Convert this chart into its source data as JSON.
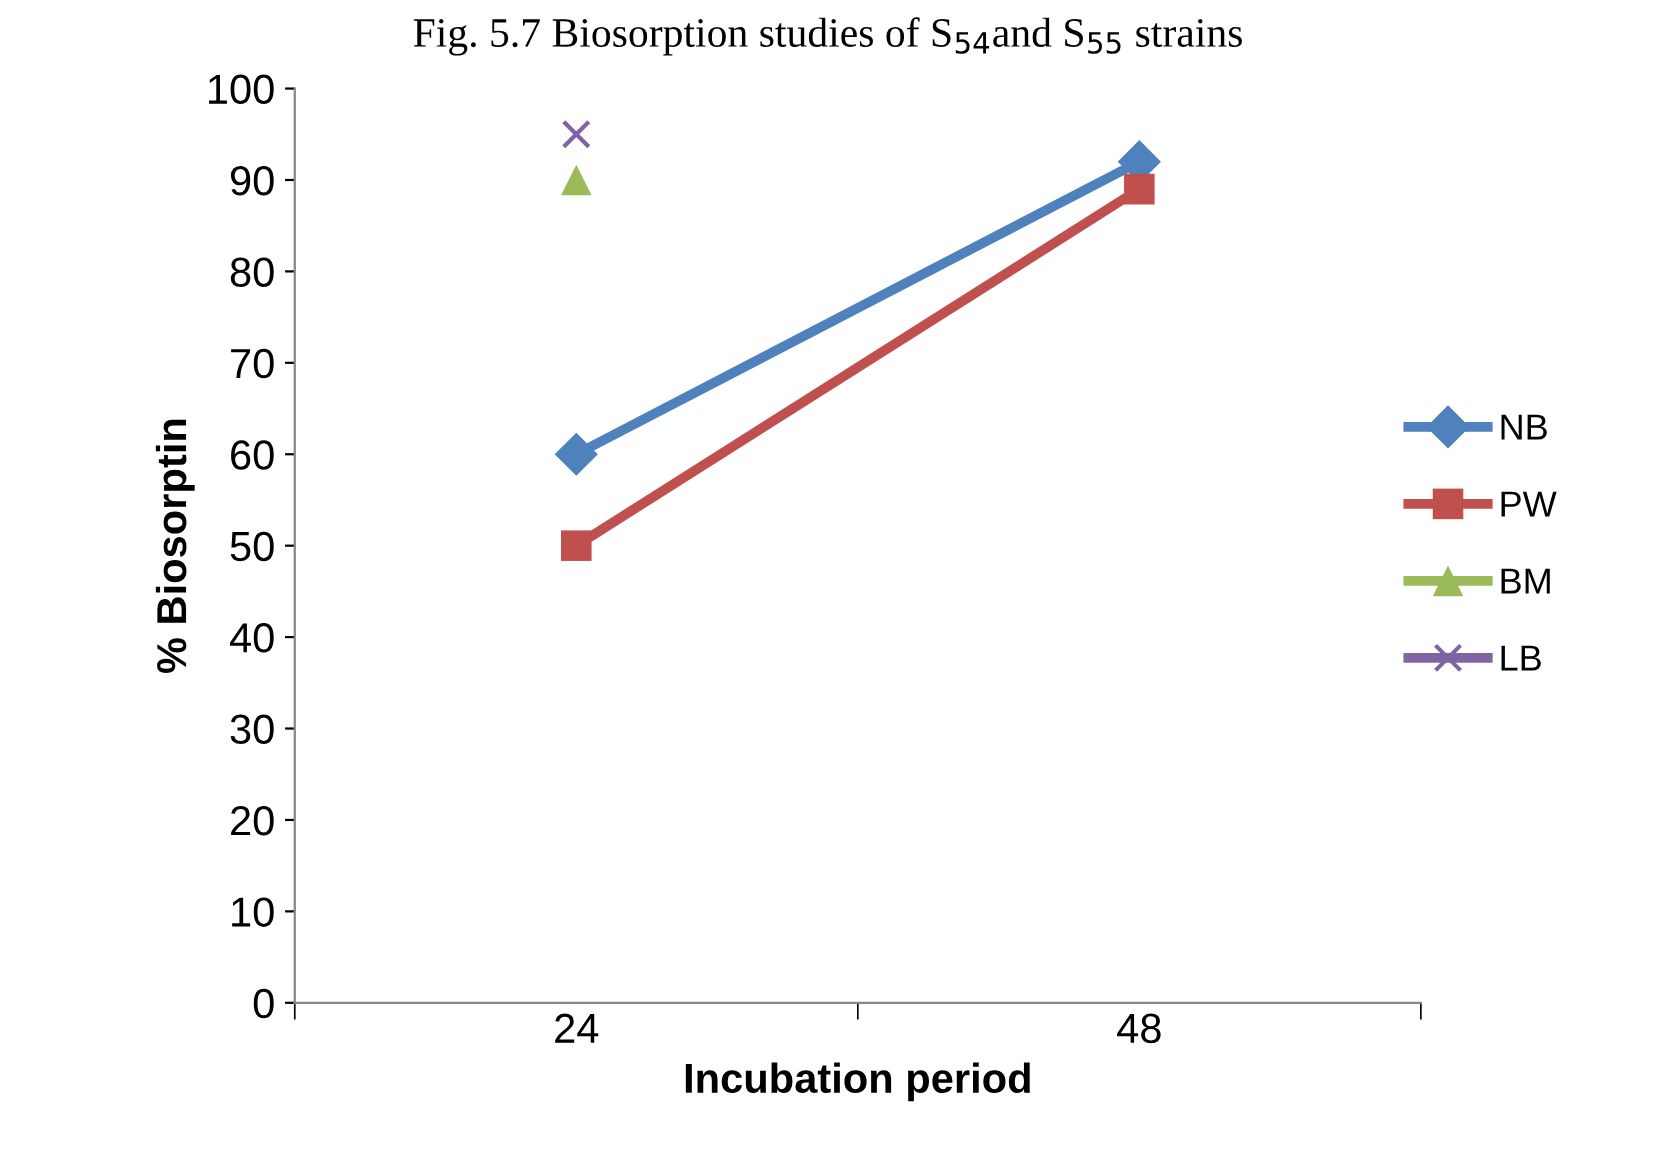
{
  "chart_data": {
    "type": "line",
    "title": "Fig. 5.7 Biosorption studies of S$_{54}$and S$_{55}$ strains",
    "xlabel": "Incubation period",
    "ylabel": "% Biosorptin",
    "categories": [
      "24",
      "48"
    ],
    "series": [
      {
        "name": "NB",
        "color": "#4f81bd",
        "marker": "diamond",
        "values": [
          60,
          92
        ]
      },
      {
        "name": "PW",
        "color": "#c0504d",
        "marker": "square",
        "values": [
          50,
          89
        ]
      },
      {
        "name": "BM",
        "color": "#9bbb59",
        "marker": "triangle",
        "values": [
          90,
          null
        ]
      },
      {
        "name": "LB",
        "color": "#8064a2",
        "marker": "cross",
        "values": [
          95,
          null
        ]
      }
    ],
    "ylim": [
      0,
      100
    ],
    "yticks": [
      0,
      10,
      20,
      30,
      40,
      50,
      60,
      70,
      80,
      90,
      100
    ],
    "grid": false,
    "legend": "right",
    "line_style": "solid"
  }
}
